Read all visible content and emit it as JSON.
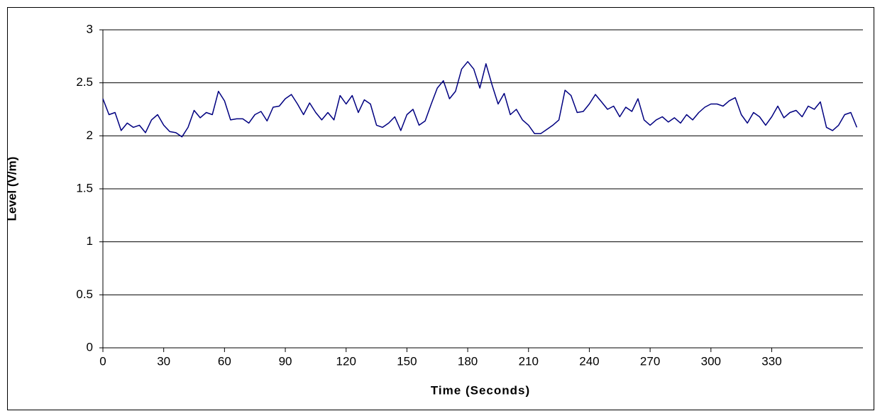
{
  "chart_data": {
    "type": "line",
    "xlabel": "Time (Seconds)",
    "ylabel": "Level (V/m)",
    "x": [
      0,
      3,
      6,
      9,
      12,
      15,
      18,
      21,
      24,
      27,
      30,
      33,
      36,
      39,
      42,
      45,
      48,
      51,
      54,
      57,
      60,
      63,
      66,
      69,
      72,
      75,
      78,
      81,
      84,
      87,
      90,
      93,
      96,
      99,
      102,
      105,
      108,
      111,
      114,
      117,
      120,
      123,
      126,
      129,
      132,
      135,
      138,
      141,
      144,
      147,
      150,
      153,
      156,
      159,
      162,
      165,
      168,
      171,
      174,
      177,
      180,
      183,
      186,
      189,
      192,
      195,
      198,
      201,
      204,
      207,
      210,
      213,
      216,
      219,
      222,
      225,
      228,
      231,
      234,
      237,
      240,
      243,
      246,
      249,
      252,
      255,
      258,
      261,
      264,
      267,
      270,
      273,
      276,
      279,
      282,
      285,
      288,
      291,
      294,
      297,
      300,
      303,
      306,
      309,
      312,
      315,
      318,
      321,
      324,
      327,
      330,
      333,
      336,
      339,
      342,
      345,
      348,
      351,
      354,
      357,
      360,
      363,
      366,
      369,
      372
    ],
    "series": [
      {
        "color": "#000080",
        "values": [
          2.35,
          2.2,
          2.22,
          2.05,
          2.12,
          2.08,
          2.1,
          2.03,
          2.15,
          2.2,
          2.1,
          2.04,
          2.03,
          1.99,
          2.08,
          2.24,
          2.17,
          2.22,
          2.2,
          2.42,
          2.33,
          2.15,
          2.16,
          2.16,
          2.12,
          2.2,
          2.23,
          2.14,
          2.27,
          2.28,
          2.35,
          2.39,
          2.3,
          2.2,
          2.31,
          2.22,
          2.15,
          2.22,
          2.15,
          2.38,
          2.3,
          2.38,
          2.22,
          2.34,
          2.3,
          2.1,
          2.08,
          2.12,
          2.18,
          2.05,
          2.2,
          2.25,
          2.1,
          2.14,
          2.3,
          2.45,
          2.52,
          2.35,
          2.42,
          2.63,
          2.7,
          2.63,
          2.45,
          2.68,
          2.48,
          2.3,
          2.4,
          2.2,
          2.25,
          2.15,
          2.1,
          2.02,
          2.02,
          2.06,
          2.1,
          2.15,
          2.43,
          2.38,
          2.22,
          2.23,
          2.3,
          2.39,
          2.32,
          2.25,
          2.28,
          2.18,
          2.27,
          2.23,
          2.35,
          2.15,
          2.1,
          2.15,
          2.18,
          2.13,
          2.17,
          2.12,
          2.2,
          2.15,
          2.22,
          2.27,
          2.3,
          2.3,
          2.28,
          2.33,
          2.36,
          2.2,
          2.12,
          2.22,
          2.18,
          2.1,
          2.18,
          2.28,
          2.17,
          2.22,
          2.24,
          2.18,
          2.28,
          2.25,
          2.32,
          2.08,
          2.05,
          2.1,
          2.2,
          2.22,
          2.08
        ]
      }
    ],
    "xlim": [
      0,
      375
    ],
    "xticks": [
      0,
      30,
      60,
      90,
      120,
      150,
      180,
      210,
      240,
      270,
      300,
      330
    ],
    "ylim": [
      0,
      3
    ],
    "yticks": [
      0,
      0.5,
      1,
      1.5,
      2,
      2.5,
      3
    ],
    "grid": true
  }
}
